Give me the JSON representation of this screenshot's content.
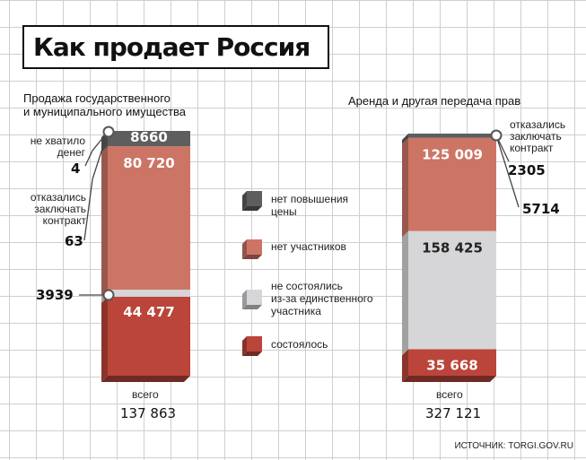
{
  "title": "Как продает Россия",
  "source": "ИСТОЧНИК: TORGI.GOV.RU",
  "colors": {
    "no_price_increase": "#5e5e5e",
    "no_participants": "#cd7565",
    "single_participant": "#d6d6d8",
    "held": "#bb453a"
  },
  "legend": [
    {
      "label": "нет повышения\nцены",
      "color": "#5e5e5e"
    },
    {
      "label": "нет участников",
      "color": "#cd7565"
    },
    {
      "label": "не состоялись\nиз-за единственного\nучастника",
      "color": "#d6d6d8"
    },
    {
      "label": "состоялось",
      "color": "#bb453a"
    }
  ],
  "left": {
    "title": "Продажа государственного\nи муниципального имущества",
    "total_label": "всего",
    "total_value": "137 863",
    "callouts": [
      {
        "label": "не хватило\nденег",
        "value": "4"
      },
      {
        "label": "отказались\nзаключать\nконтракт",
        "value": "63"
      },
      {
        "label": "",
        "value": "3939"
      }
    ]
  },
  "right": {
    "title": "Аренда и другая передача прав",
    "total_label": "всего",
    "total_value": "327 121",
    "callouts": [
      {
        "label": "отказались\nзаключать\nконтракт",
        "value": "2305"
      },
      {
        "label": "",
        "value": "5714"
      }
    ]
  },
  "chart_data": [
    {
      "type": "bar",
      "stacked": true,
      "title": "Продажа государственного и муниципального имущества",
      "total": 137863,
      "segments": [
        {
          "name": "состоялось",
          "value": 44477,
          "color": "#bb453a",
          "label": "44 477"
        },
        {
          "name": "не состоялись из-за единственного участника",
          "value": 3939,
          "color": "#d6d6d8",
          "label": "3939"
        },
        {
          "name": "нет участников",
          "value": 80720,
          "color": "#cd7565",
          "label": "80 720"
        },
        {
          "name": "нет повышения цены",
          "value": 8660,
          "color": "#5e5e5e",
          "label": "8660"
        },
        {
          "name": "отказались заключать контракт",
          "value": 63,
          "label": "63"
        },
        {
          "name": "не хватило денег",
          "value": 4,
          "label": "4"
        }
      ]
    },
    {
      "type": "bar",
      "stacked": true,
      "title": "Аренда и другая передача прав",
      "total": 327121,
      "segments": [
        {
          "name": "состоялось",
          "value": 35668,
          "color": "#bb453a",
          "label": "35 668"
        },
        {
          "name": "не состоялись из-за единственного участника",
          "value": 158425,
          "color": "#d6d6d8",
          "label": "158 425"
        },
        {
          "name": "нет участников",
          "value": 125009,
          "color": "#cd7565",
          "label": "125 009"
        },
        {
          "name": "нет повышения цены",
          "value": 5714,
          "color": "#5e5e5e",
          "label": "5714"
        },
        {
          "name": "отказались заключать контракт",
          "value": 2305,
          "label": "2305"
        }
      ]
    }
  ]
}
